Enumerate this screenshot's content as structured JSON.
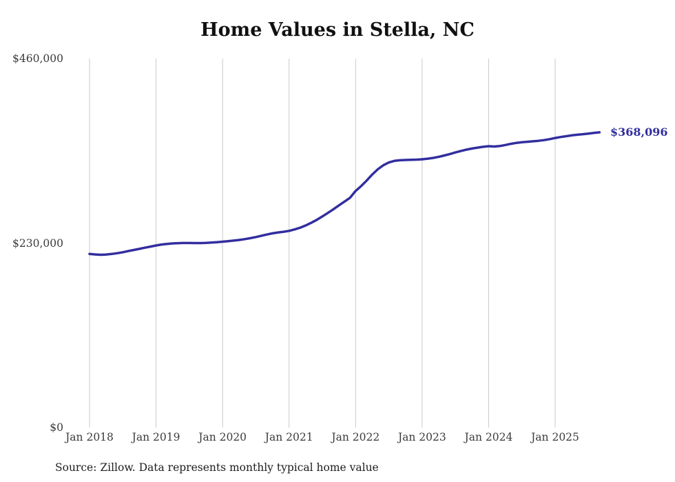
{
  "source_note": "Source: Zillow. Data represents monthly typical home value",
  "chart_data": {
    "type": "line",
    "title": "Home Values in Stella, NC",
    "series_name": "Monthly typical home value",
    "x_start": "Jan 2018",
    "x_end": "Sep 2025",
    "x_interval": "monthly",
    "values": [
      216500,
      215800,
      215400,
      215700,
      216400,
      217400,
      218600,
      220000,
      221400,
      222800,
      224200,
      225600,
      227000,
      228200,
      229000,
      229600,
      229900,
      230100,
      230100,
      230000,
      230000,
      230200,
      230600,
      231100,
      231700,
      232400,
      233100,
      233900,
      234900,
      236100,
      237500,
      239100,
      240700,
      242100,
      243200,
      244100,
      245200,
      247000,
      249200,
      252000,
      255300,
      259000,
      263200,
      267600,
      272200,
      277000,
      281800,
      286500,
      295000,
      301000,
      308000,
      315500,
      322000,
      327000,
      330500,
      332500,
      333300,
      333600,
      333800,
      334000,
      334500,
      335200,
      336200,
      337600,
      339200,
      341000,
      343000,
      344900,
      346500,
      347900,
      349000,
      350000,
      350800,
      350400,
      351000,
      352300,
      353700,
      354900,
      355700,
      356300,
      356900,
      357500,
      358400,
      359600,
      361000,
      362200,
      363300,
      364300,
      365100,
      365800,
      366500,
      367300,
      368096
    ],
    "final_value": 368096,
    "end_label": "$368,096",
    "ylim": [
      0,
      460000
    ],
    "yticks": [
      {
        "value": 0,
        "label": "$0"
      },
      {
        "value": 230000,
        "label": "$230,000"
      },
      {
        "value": 460000,
        "label": "$460,000"
      }
    ],
    "xticks": [
      "Jan 2018",
      "Jan 2019",
      "Jan 2020",
      "Jan 2021",
      "Jan 2022",
      "Jan 2023",
      "Jan 2024",
      "Jan 2025"
    ],
    "grid": "vertical-only",
    "legend": "none",
    "line_color": "#322e9f",
    "grid_color": "#c9c9c9"
  }
}
